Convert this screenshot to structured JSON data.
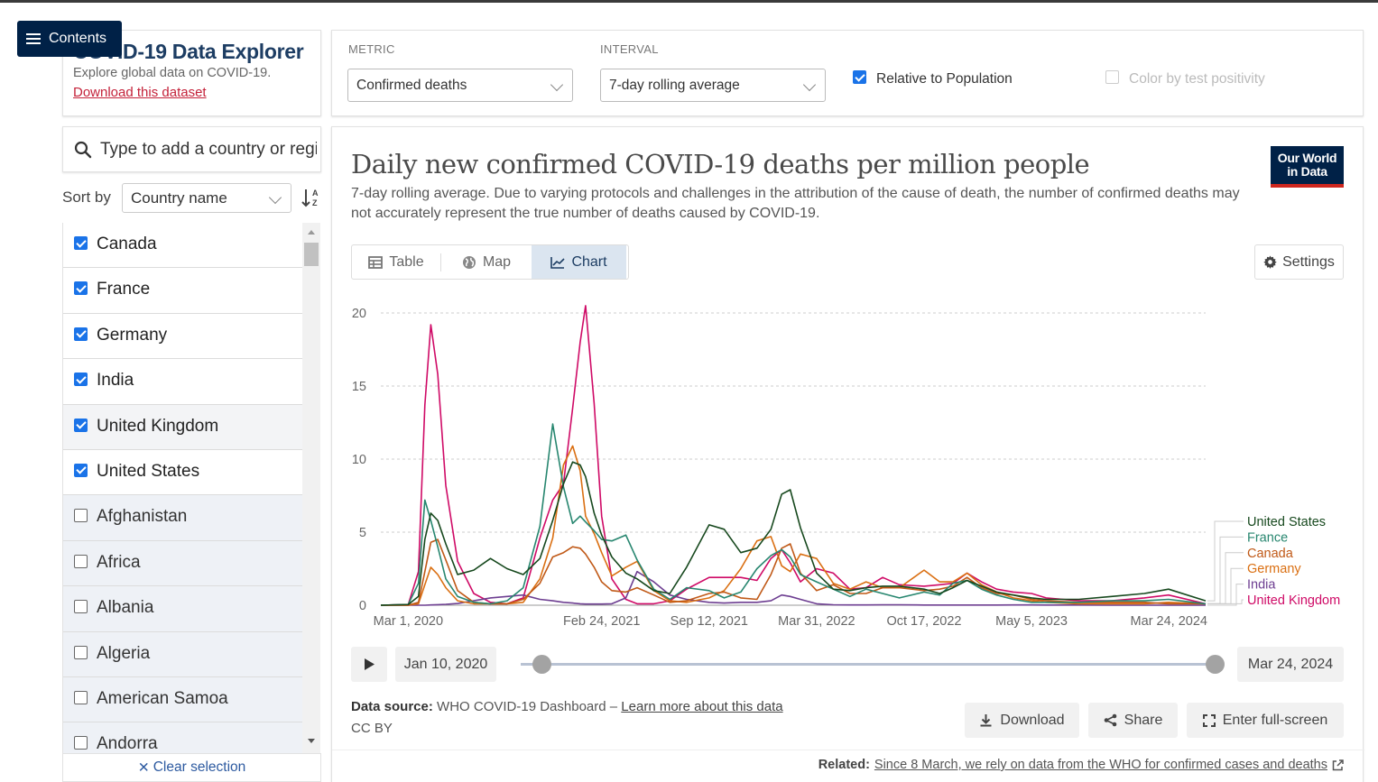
{
  "nav": {
    "contents_label": "Contents"
  },
  "header": {
    "title": "COVID-19 Data Explorer",
    "subtitle": "Explore global data on COVID-19.",
    "download_link": "Download this dataset"
  },
  "controls": {
    "metric_label": "METRIC",
    "metric_value": "Confirmed deaths",
    "interval_label": "INTERVAL",
    "interval_value": "7-day rolling average",
    "relative_label": "Relative to Population",
    "relative_checked": true,
    "color_label": "Color by test positivity",
    "color_checked": false
  },
  "search": {
    "placeholder": "Type to add a country or region..."
  },
  "sort": {
    "label": "Sort by",
    "value": "Country name"
  },
  "entities": [
    {
      "name": "Canada",
      "selected": true
    },
    {
      "name": "France",
      "selected": true
    },
    {
      "name": "Germany",
      "selected": true
    },
    {
      "name": "India",
      "selected": true
    },
    {
      "name": "United Kingdom",
      "selected": true
    },
    {
      "name": "United States",
      "selected": true
    },
    {
      "name": "Afghanistan",
      "selected": false
    },
    {
      "name": "Africa",
      "selected": false
    },
    {
      "name": "Albania",
      "selected": false
    },
    {
      "name": "Algeria",
      "selected": false
    },
    {
      "name": "American Samoa",
      "selected": false
    },
    {
      "name": "Andorra",
      "selected": false
    }
  ],
  "clear_selection": "Clear selection",
  "chart": {
    "title": "Daily new confirmed COVID-19 deaths per million people",
    "subtitle": "7-day rolling average. Due to varying protocols and challenges in the attribution of the cause of death, the number of confirmed deaths may not accurately represent the true number of deaths caused by COVID-19.",
    "logo_line1": "Our World",
    "logo_line2": "in Data",
    "tabs": [
      {
        "label": "Table",
        "icon": "table-icon",
        "active": false
      },
      {
        "label": "Map",
        "icon": "globe-icon",
        "active": false
      },
      {
        "label": "Chart",
        "icon": "line-chart-icon",
        "active": true
      }
    ],
    "settings_label": "Settings"
  },
  "chart_data": {
    "type": "line",
    "title": "Daily new confirmed COVID-19 deaths per million people",
    "xlabel": "",
    "ylabel": "",
    "ylim": [
      0,
      20
    ],
    "xlim": [
      "2020-01-10",
      "2024-03-24"
    ],
    "y_ticks": [
      0,
      5,
      10,
      15,
      20
    ],
    "x_ticks": [
      "Mar 1, 2020",
      "Feb 24, 2021",
      "Sep 12, 2021",
      "Mar 31, 2022",
      "Oct 17, 2022",
      "May 5, 2023",
      "Mar 24, 2024"
    ],
    "grid": true,
    "legend_position": "right",
    "x": [
      "2020-01-10",
      "2020-03-01",
      "2020-03-20",
      "2020-04-01",
      "2020-04-12",
      "2020-04-25",
      "2020-05-10",
      "2020-06-01",
      "2020-07-01",
      "2020-08-01",
      "2020-09-01",
      "2020-10-01",
      "2020-11-01",
      "2020-11-25",
      "2020-12-15",
      "2021-01-01",
      "2021-01-15",
      "2021-01-25",
      "2021-02-10",
      "2021-02-24",
      "2021-03-15",
      "2021-04-10",
      "2021-05-01",
      "2021-06-01",
      "2021-07-01",
      "2021-08-01",
      "2021-09-12",
      "2021-10-10",
      "2021-11-10",
      "2021-12-10",
      "2022-01-05",
      "2022-01-25",
      "2022-02-10",
      "2022-03-01",
      "2022-03-31",
      "2022-05-01",
      "2022-06-01",
      "2022-07-01",
      "2022-08-01",
      "2022-09-01",
      "2022-10-17",
      "2022-11-15",
      "2022-12-10",
      "2023-01-05",
      "2023-02-01",
      "2023-03-01",
      "2023-04-01",
      "2023-05-05",
      "2023-06-01",
      "2023-08-01",
      "2023-10-01",
      "2023-12-01",
      "2024-01-15",
      "2024-03-24"
    ],
    "series": [
      {
        "name": "United States",
        "color": "#16481d",
        "values": [
          0,
          0.05,
          0.6,
          4.5,
          6.3,
          5.8,
          4.2,
          2.1,
          2.4,
          3.2,
          2.5,
          2.1,
          3.2,
          5.8,
          8.3,
          9.8,
          9.6,
          8.8,
          6.3,
          4.8,
          3.3,
          2.2,
          1.8,
          1.0,
          0.8,
          2.6,
          5.5,
          5.2,
          3.6,
          3.9,
          5.2,
          7.6,
          7.9,
          5.3,
          2.2,
          1.1,
          1.0,
          1.2,
          1.3,
          1.3,
          1.1,
          0.8,
          1.2,
          1.7,
          1.3,
          0.9,
          0.7,
          0.5,
          0.4,
          0.4,
          0.6,
          0.8,
          1.1,
          0.3
        ]
      },
      {
        "name": "France",
        "color": "#27866f",
        "values": [
          0,
          0.05,
          1.5,
          7.2,
          5.8,
          4.0,
          1.8,
          0.6,
          0.2,
          0.1,
          0.3,
          1.2,
          5.4,
          12.4,
          8.1,
          5.6,
          6.1,
          5.7,
          5.1,
          4.5,
          4.4,
          4.8,
          3.1,
          1.1,
          0.4,
          1.2,
          1.0,
          0.5,
          0.9,
          2.5,
          3.4,
          3.8,
          3.3,
          2.1,
          1.6,
          1.1,
          0.6,
          1.1,
          0.8,
          0.5,
          0.9,
          0.7,
          1.5,
          1.7,
          1.1,
          0.7,
          0.4,
          0.2,
          0.2,
          0.2,
          0.3,
          0.3,
          0.4,
          0.1
        ]
      },
      {
        "name": "Canada",
        "color": "#c05917",
        "values": [
          0,
          0,
          0.2,
          2.3,
          4.3,
          4.5,
          3.1,
          1.0,
          0.2,
          0.1,
          0.1,
          0.4,
          1.5,
          3.3,
          3.6,
          4.0,
          3.9,
          3.5,
          2.6,
          1.6,
          1.0,
          0.9,
          1.2,
          0.7,
          0.2,
          0.3,
          0.8,
          0.9,
          0.5,
          0.4,
          2.1,
          3.9,
          4.2,
          2.2,
          1.0,
          1.4,
          0.8,
          0.8,
          1.2,
          1.2,
          1.0,
          1.1,
          1.3,
          1.9,
          1.2,
          0.8,
          0.7,
          0.4,
          0.3,
          0.2,
          0.2,
          0.2,
          0.1,
          0.1
        ]
      },
      {
        "name": "Germany",
        "color": "#da6f12",
        "values": [
          0,
          0,
          0.1,
          1.4,
          2.6,
          2.1,
          1.2,
          0.3,
          0.1,
          0.1,
          0.1,
          0.2,
          1.8,
          4.6,
          9.6,
          10.9,
          9.2,
          6.1,
          4.9,
          3.6,
          2.0,
          2.6,
          3.0,
          1.0,
          0.3,
          0.2,
          0.5,
          1.0,
          2.5,
          4.4,
          4.7,
          2.7,
          2.3,
          3.5,
          3.2,
          1.5,
          1.1,
          1.6,
          1.2,
          1.2,
          2.4,
          1.6,
          1.6,
          2.2,
          1.4,
          0.9,
          0.5,
          0.3,
          0.2,
          0.1,
          0.1,
          0.1,
          0.2,
          0.1
        ]
      },
      {
        "name": "India",
        "color": "#6d3e91",
        "values": [
          0,
          0,
          0,
          0,
          0.02,
          0.04,
          0.06,
          0.12,
          0.3,
          0.5,
          0.6,
          0.7,
          0.4,
          0.3,
          0.2,
          0.15,
          0.1,
          0.08,
          0.08,
          0.08,
          0.1,
          0.5,
          2.3,
          1.6,
          0.7,
          0.4,
          0.2,
          0.15,
          0.2,
          0.2,
          0.3,
          0.7,
          0.6,
          0.4,
          0.1,
          0.03,
          0.02,
          0.02,
          0.03,
          0.03,
          0.01,
          0.01,
          0.01,
          0.01,
          0.01,
          0.01,
          0.02,
          0.02,
          0.01,
          0.01,
          0.0,
          0.0,
          0.0,
          0.0
        ]
      },
      {
        "name": "United Kingdom",
        "color": "#cf0a66",
        "values": [
          0,
          0.05,
          2.3,
          13.7,
          19.2,
          15.8,
          8.2,
          3.0,
          0.8,
          0.2,
          0.1,
          0.5,
          4.6,
          7.2,
          8.3,
          13.5,
          18.0,
          20.5,
          13.8,
          6.1,
          1.8,
          0.4,
          0.1,
          0.1,
          0.3,
          1.1,
          1.9,
          1.9,
          1.9,
          1.7,
          3.2,
          3.8,
          2.9,
          1.6,
          2.5,
          2.2,
          1.1,
          1.2,
          1.9,
          1.4,
          1.3,
          1.4,
          1.5,
          2.2,
          1.6,
          1.1,
          0.9,
          0.8,
          0.5,
          0.3,
          0.3,
          0.5,
          0.7,
          0.1
        ]
      }
    ]
  },
  "timeline": {
    "start_label": "Jan 10, 2020",
    "end_label": "Mar 24, 2024"
  },
  "footer": {
    "source_prefix": "Data source:",
    "source_text": "WHO COVID-19 Dashboard –",
    "learn_more": "Learn more about this data",
    "license": "CC BY",
    "download_label": "Download",
    "share_label": "Share",
    "fullscreen_label": "Enter full-screen",
    "related_prefix": "Related:",
    "related_link": "Since 8 March, we rely on data from the WHO for confirmed cases and deaths"
  }
}
